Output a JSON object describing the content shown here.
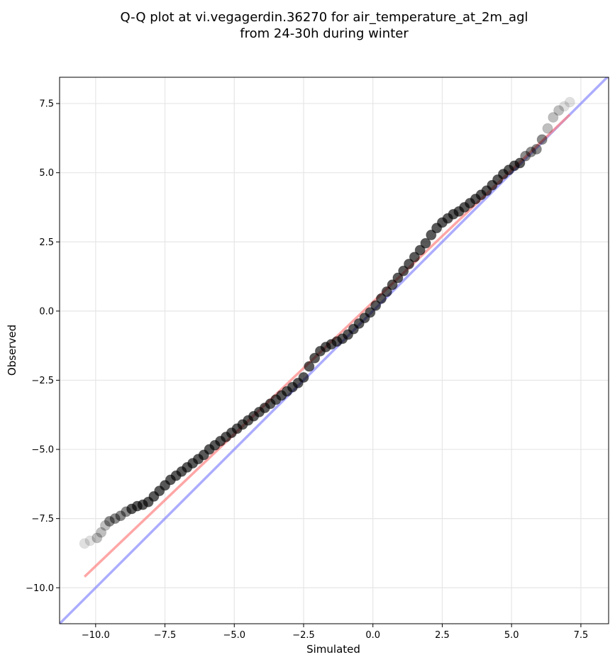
{
  "chart_data": {
    "type": "scatter",
    "title": [
      "Q-Q plot at vi.vegagerdin.36270 for air_temperature_at_2m_agl",
      "from 24-30h during winter"
    ],
    "xlabel": "Simulated",
    "ylabel": "Observed",
    "xlim": [
      -11.3,
      8.5
    ],
    "ylim": [
      -11.3,
      8.45
    ],
    "xticks": [
      -10.0,
      -7.5,
      -5.0,
      -2.5,
      0.0,
      2.5,
      5.0,
      7.5
    ],
    "yticks": [
      -10.0,
      -7.5,
      -5.0,
      -2.5,
      0.0,
      2.5,
      5.0,
      7.5
    ],
    "xtick_labels": [
      "−10.0",
      "−7.5",
      "−5.0",
      "−2.5",
      "0.0",
      "2.5",
      "5.0",
      "7.5"
    ],
    "ytick_labels": [
      "−10.0",
      "−7.5",
      "−5.0",
      "−2.5",
      "0.0",
      "2.5",
      "5.0",
      "7.5"
    ],
    "grid": true,
    "quantiles": {
      "x": [
        -10.4,
        -10.2,
        -9.95,
        -9.8,
        -9.65,
        -9.5,
        -9.3,
        -9.1,
        -8.9,
        -8.7,
        -8.5,
        -8.3,
        -8.1,
        -7.9,
        -7.7,
        -7.5,
        -7.3,
        -7.1,
        -6.9,
        -6.7,
        -6.5,
        -6.3,
        -6.1,
        -5.9,
        -5.7,
        -5.5,
        -5.3,
        -5.1,
        -4.9,
        -4.7,
        -4.5,
        -4.3,
        -4.1,
        -3.9,
        -3.7,
        -3.5,
        -3.3,
        -3.1,
        -2.9,
        -2.7,
        -2.5,
        -2.3,
        -2.1,
        -1.9,
        -1.7,
        -1.5,
        -1.3,
        -1.1,
        -0.9,
        -0.7,
        -0.5,
        -0.3,
        -0.1,
        0.1,
        0.3,
        0.5,
        0.7,
        0.9,
        1.1,
        1.3,
        1.5,
        1.7,
        1.9,
        2.1,
        2.3,
        2.5,
        2.7,
        2.9,
        3.1,
        3.3,
        3.5,
        3.7,
        3.9,
        4.1,
        4.3,
        4.5,
        4.7,
        4.9,
        5.1,
        5.3,
        5.5,
        5.7,
        5.9,
        6.1,
        6.3,
        6.5,
        6.7,
        6.9,
        7.1
      ],
      "y": [
        -8.4,
        -8.3,
        -8.2,
        -8.0,
        -7.75,
        -7.6,
        -7.5,
        -7.4,
        -7.25,
        -7.15,
        -7.05,
        -7.0,
        -6.9,
        -6.7,
        -6.5,
        -6.3,
        -6.1,
        -5.95,
        -5.8,
        -5.65,
        -5.5,
        -5.35,
        -5.2,
        -5.0,
        -4.85,
        -4.7,
        -4.55,
        -4.4,
        -4.25,
        -4.1,
        -3.95,
        -3.8,
        -3.65,
        -3.5,
        -3.35,
        -3.2,
        -3.05,
        -2.9,
        -2.75,
        -2.6,
        -2.4,
        -2.0,
        -1.7,
        -1.45,
        -1.3,
        -1.2,
        -1.1,
        -1.0,
        -0.85,
        -0.65,
        -0.45,
        -0.25,
        -0.05,
        0.2,
        0.45,
        0.7,
        0.95,
        1.2,
        1.45,
        1.7,
        1.95,
        2.2,
        2.45,
        2.75,
        3.0,
        3.2,
        3.35,
        3.5,
        3.6,
        3.75,
        3.9,
        4.05,
        4.2,
        4.35,
        4.55,
        4.75,
        4.95,
        5.1,
        5.25,
        5.35,
        5.6,
        5.75,
        5.85,
        6.2,
        6.6,
        7.0,
        7.25,
        7.4,
        7.55
      ]
    },
    "fit_line": {
      "x": [
        -10.4,
        7.1
      ],
      "y": [
        -9.6,
        7.1
      ],
      "color": "#ff8080"
    },
    "identity_line": {
      "color": "#8080ff"
    },
    "point_color": "#000000"
  }
}
